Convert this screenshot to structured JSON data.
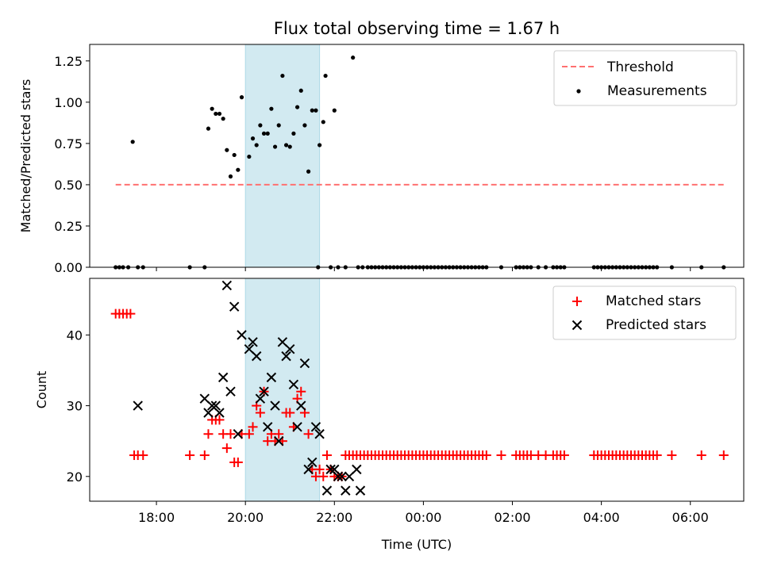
{
  "chart_data": [
    {
      "type": "scatter",
      "title": "Flux total observing time = 1.67 h",
      "xlabel": "",
      "ylabel": "Matched/Predicted stars",
      "ylim": [
        0,
        1.35
      ],
      "yticks": [
        "0.00",
        "0.25",
        "0.50",
        "0.75",
        "1.00",
        "1.25"
      ],
      "xlim_hours_since_1600": [
        0.5,
        15.2
      ],
      "grid": false,
      "legend_position": "top-right",
      "shaded_interval": [
        "20:00",
        "21:40"
      ],
      "shade_color": "#add8e6",
      "threshold": {
        "name": "Threshold",
        "value": 0.5,
        "x_start": "17:05",
        "x_end": "06:45",
        "color": "#ff7070"
      },
      "series": [
        {
          "name": "Measurements",
          "color": "#000000",
          "x": [
            "17:05",
            "17:10",
            "17:15",
            "17:22",
            "17:28",
            "17:35",
            "17:42",
            "18:45",
            "19:05",
            "19:10",
            "19:15",
            "19:20",
            "19:25",
            "19:30",
            "19:35",
            "19:40",
            "19:45",
            "19:50",
            "19:55",
            "20:05",
            "20:10",
            "20:15",
            "20:20",
            "20:25",
            "20:30",
            "20:35",
            "20:40",
            "20:45",
            "20:50",
            "20:55",
            "21:00",
            "21:05",
            "21:10",
            "21:15",
            "21:20",
            "21:25",
            "21:30",
            "21:35",
            "21:38",
            "21:40",
            "21:45",
            "21:48",
            "21:55",
            "22:00",
            "22:05",
            "22:15",
            "22:25",
            "22:32",
            "22:38",
            "22:45",
            "22:50",
            "22:55",
            "23:00",
            "23:05",
            "23:10",
            "23:15",
            "23:20",
            "23:25",
            "23:30",
            "23:35",
            "23:40",
            "23:45",
            "23:50",
            "23:55",
            "00:00",
            "00:05",
            "00:10",
            "00:15",
            "00:20",
            "00:25",
            "00:30",
            "00:35",
            "00:40",
            "00:45",
            "00:50",
            "00:55",
            "01:00",
            "01:05",
            "01:10",
            "01:15",
            "01:20",
            "01:25",
            "01:45",
            "02:05",
            "02:10",
            "02:15",
            "02:20",
            "02:25",
            "02:35",
            "02:45",
            "02:55",
            "03:00",
            "03:05",
            "03:10",
            "03:50",
            "03:55",
            "04:00",
            "04:05",
            "04:10",
            "04:15",
            "04:20",
            "04:25",
            "04:30",
            "04:35",
            "04:40",
            "04:45",
            "04:50",
            "04:55",
            "05:00",
            "05:05",
            "05:10",
            "05:15",
            "05:35",
            "06:15",
            "06:45"
          ],
          "y": [
            0,
            0,
            0,
            0,
            0.76,
            0,
            0,
            0,
            0,
            0.84,
            0.96,
            0.93,
            0.93,
            0.9,
            0.71,
            0.55,
            0.68,
            0.59,
            1.03,
            0.67,
            0.78,
            0.74,
            0.86,
            0.81,
            0.81,
            0.96,
            0.73,
            0.86,
            1.16,
            0.74,
            0.73,
            0.81,
            0.97,
            1.07,
            0.86,
            0.58,
            0.95,
            0.95,
            0,
            0.74,
            0.88,
            1.16,
            0,
            0.95,
            0,
            0,
            1.27,
            0,
            0,
            0,
            0,
            0,
            0,
            0,
            0,
            0,
            0,
            0,
            0,
            0,
            0,
            0,
            0,
            0,
            0,
            0,
            0,
            0,
            0,
            0,
            0,
            0,
            0,
            0,
            0,
            0,
            0,
            0,
            0,
            0,
            0,
            0,
            0,
            0,
            0,
            0,
            0,
            0,
            0,
            0,
            0,
            0,
            0,
            0,
            0,
            0,
            0,
            0,
            0,
            0,
            0,
            0,
            0,
            0,
            0,
            0,
            0,
            0,
            0,
            0,
            0,
            0,
            0,
            0,
            0
          ]
        }
      ]
    },
    {
      "type": "scatter",
      "title": "",
      "xlabel": "Time (UTC)",
      "ylabel": "Count",
      "ylim": [
        16.5,
        48
      ],
      "yticks": [
        "20",
        "30",
        "40"
      ],
      "xticks": [
        "18:00",
        "20:00",
        "22:00",
        "00:00",
        "02:00",
        "04:00",
        "06:00"
      ],
      "xlim_hours_since_1600": [
        0.5,
        15.2
      ],
      "grid": false,
      "legend_position": "top-right",
      "shaded_interval": [
        "20:00",
        "21:40"
      ],
      "shade_color": "#add8e6",
      "series": [
        {
          "name": "Matched stars",
          "color": "#ff0000",
          "marker": "plus",
          "x": [
            "17:05",
            "17:10",
            "17:15",
            "17:20",
            "17:25",
            "17:30",
            "17:35",
            "17:42",
            "18:45",
            "19:05",
            "19:10",
            "19:15",
            "19:20",
            "19:25",
            "19:30",
            "19:35",
            "19:40",
            "19:45",
            "19:50",
            "19:55",
            "20:05",
            "20:10",
            "20:15",
            "20:20",
            "20:25",
            "20:30",
            "20:35",
            "20:40",
            "20:45",
            "20:50",
            "20:55",
            "21:00",
            "21:05",
            "21:10",
            "21:15",
            "21:20",
            "21:25",
            "21:30",
            "21:35",
            "21:40",
            "21:45",
            "21:50",
            "21:55",
            "22:00",
            "22:05",
            "22:10",
            "22:15",
            "22:20",
            "22:25",
            "22:30",
            "22:35",
            "22:40",
            "22:45",
            "22:50",
            "22:55",
            "23:00",
            "23:05",
            "23:10",
            "23:15",
            "23:20",
            "23:25",
            "23:30",
            "23:35",
            "23:40",
            "23:45",
            "23:50",
            "23:55",
            "00:00",
            "00:05",
            "00:10",
            "00:15",
            "00:20",
            "00:25",
            "00:30",
            "00:35",
            "00:40",
            "00:45",
            "00:50",
            "00:55",
            "01:00",
            "01:05",
            "01:10",
            "01:15",
            "01:20",
            "01:25",
            "01:45",
            "02:05",
            "02:10",
            "02:15",
            "02:20",
            "02:25",
            "02:35",
            "02:45",
            "02:55",
            "03:00",
            "03:05",
            "03:10",
            "03:50",
            "03:55",
            "04:00",
            "04:05",
            "04:10",
            "04:15",
            "04:20",
            "04:25",
            "04:30",
            "04:35",
            "04:40",
            "04:45",
            "04:50",
            "04:55",
            "05:00",
            "05:05",
            "05:10",
            "05:15",
            "05:35",
            "06:15",
            "06:45"
          ],
          "y": [
            43,
            43,
            43,
            43,
            43,
            23,
            23,
            23,
            23,
            23,
            26,
            28,
            28,
            28,
            26,
            24,
            26,
            22,
            22,
            26,
            26,
            27,
            30,
            29,
            32,
            25,
            26,
            25,
            26,
            25,
            29,
            29,
            27,
            31,
            32,
            29,
            26,
            21,
            20,
            21,
            20,
            23,
            21,
            20,
            20,
            20,
            23,
            23,
            23,
            23,
            23,
            23,
            23,
            23,
            23,
            23,
            23,
            23,
            23,
            23,
            23,
            23,
            23,
            23,
            23,
            23,
            23,
            23,
            23,
            23,
            23,
            23,
            23,
            23,
            23,
            23,
            23,
            23,
            23,
            23,
            23,
            23,
            23,
            23,
            23,
            23,
            23,
            23,
            23,
            23,
            23,
            23,
            23,
            23,
            23,
            23,
            23,
            23,
            23,
            23,
            23,
            23,
            23,
            23,
            23,
            23,
            23,
            23,
            23,
            23,
            23,
            23,
            23,
            23,
            23,
            23,
            23,
            23
          ]
        },
        {
          "name": "Predicted stars",
          "color": "#000000",
          "marker": "x",
          "x": [
            "17:35",
            "19:05",
            "19:10",
            "19:15",
            "19:20",
            "19:25",
            "19:30",
            "19:35",
            "19:40",
            "19:45",
            "19:50",
            "19:55",
            "20:05",
            "20:10",
            "20:15",
            "20:20",
            "20:25",
            "20:30",
            "20:35",
            "20:40",
            "20:45",
            "20:50",
            "20:55",
            "21:00",
            "21:05",
            "21:10",
            "21:15",
            "21:20",
            "21:25",
            "21:30",
            "21:35",
            "21:40",
            "21:50",
            "21:55",
            "22:00",
            "22:05",
            "22:10",
            "22:15",
            "22:20",
            "22:30",
            "22:35"
          ],
          "y": [
            30,
            31,
            29,
            30,
            30,
            29,
            34,
            47,
            32,
            44,
            26,
            40,
            38,
            39,
            37,
            31,
            32,
            27,
            34,
            30,
            25,
            39,
            37,
            38,
            33,
            27,
            30,
            36,
            21,
            22,
            27,
            26,
            18,
            21,
            21,
            20,
            20,
            18,
            20,
            21,
            18
          ]
        }
      ]
    }
  ]
}
